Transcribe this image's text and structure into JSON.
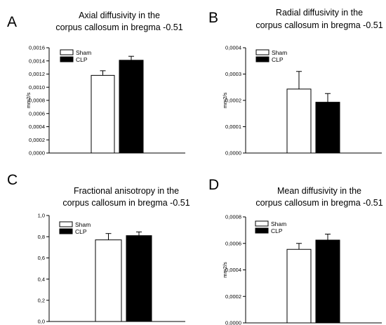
{
  "chart_data": [
    {
      "panel": "A",
      "type": "bar",
      "title_lines": [
        "Axial diffusivity in the",
        "corpus callosum  in bregma -0.51"
      ],
      "ylabel": "mm2/s",
      "ylim": [
        0,
        0.0016
      ],
      "yticks": [
        "0,0000",
        "0,0002",
        "0,0004",
        "0,0006",
        "0,0008",
        "0,0010",
        "0,0012",
        "0,0014",
        "0,0016"
      ],
      "legend": [
        "Sham",
        "CLP"
      ],
      "series": [
        {
          "name": "Sham",
          "value": 0.00118,
          "error": 7e-05,
          "color": "#ffffff"
        },
        {
          "name": "CLP",
          "value": 0.00141,
          "error": 6e-05,
          "color": "#000000"
        }
      ]
    },
    {
      "panel": "B",
      "type": "bar",
      "title_lines": [
        "Radial diffusivity in the",
        "corpus callosum in bregma -0.51"
      ],
      "ylabel": "mm2/s",
      "ylim": [
        0,
        0.0004
      ],
      "yticks": [
        "0,0000",
        "0,0001",
        "0,0002",
        "0,0003",
        "0,0004"
      ],
      "legend": [
        "Sham",
        "CLP"
      ],
      "series": [
        {
          "name": "Sham",
          "value": 0.000243,
          "error": 6.7e-05,
          "color": "#ffffff"
        },
        {
          "name": "CLP",
          "value": 0.000193,
          "error": 3.3e-05,
          "color": "#000000"
        }
      ]
    },
    {
      "panel": "C",
      "type": "bar",
      "title_lines": [
        "Fractional anisotropy in the",
        "corpus callosum in bregma -0.51"
      ],
      "ylabel": "",
      "ylim": [
        0,
        1.0
      ],
      "yticks": [
        "0,0",
        "0,2",
        "0,4",
        "0,6",
        "0,8",
        "1,0"
      ],
      "legend": [
        "Sham",
        "CLP"
      ],
      "series": [
        {
          "name": "Sham",
          "value": 0.77,
          "error": 0.06,
          "color": "#ffffff"
        },
        {
          "name": "CLP",
          "value": 0.81,
          "error": 0.035,
          "color": "#000000"
        }
      ]
    },
    {
      "panel": "D",
      "type": "bar",
      "title_lines": [
        "Mean diffusivity in the",
        "corpus callosum in bregma -0.51"
      ],
      "ylabel": "mm2/s",
      "ylim": [
        0,
        0.0008
      ],
      "yticks": [
        "0,0000",
        "0,0002",
        "0,0004",
        "0,0006",
        "0,0008"
      ],
      "legend": [
        "Sham",
        "CLP"
      ],
      "series": [
        {
          "name": "Sham",
          "value": 0.000555,
          "error": 4.5e-05,
          "color": "#ffffff"
        },
        {
          "name": "CLP",
          "value": 0.000625,
          "error": 4.5e-05,
          "color": "#000000"
        }
      ]
    }
  ]
}
